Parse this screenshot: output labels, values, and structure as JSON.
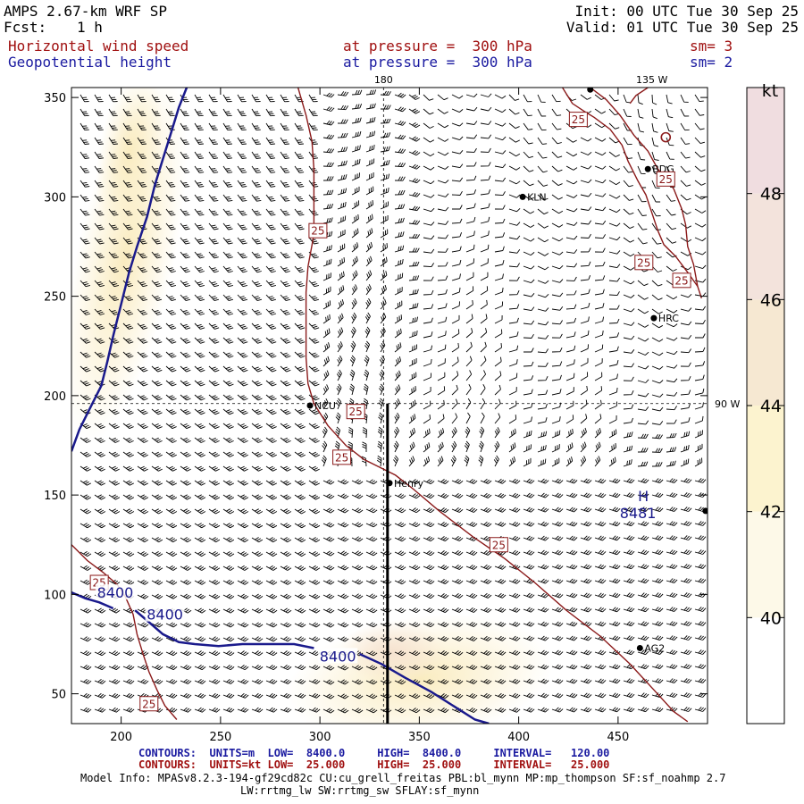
{
  "header": {
    "model": "AMPS 2.67-km WRF SP",
    "fcst_label": "Fcst:",
    "fcst_value": "1 h",
    "init": "Init: 00 UTC Tue 30 Sep 25",
    "valid": "Valid: 01 UTC Tue 30 Sep 25",
    "field1_name": "Horizontal wind speed",
    "field1_level": "at pressure =  300 hPa",
    "field1_sm": "sm= 3",
    "field2_name": "Geopotential height",
    "field2_level": "at pressure =  300 hPa",
    "field2_sm": "sm= 2"
  },
  "colors": {
    "fill_light": "#fdf5dc",
    "fill_mid": "#faedc2",
    "wind_contour": "#8b1a1a",
    "height_contour": "#1a1a8c"
  },
  "chart_data": {
    "type": "heatmap",
    "xlim": [
      175,
      495
    ],
    "ylim": [
      35,
      355
    ],
    "x_ticks": [
      200,
      250,
      300,
      350,
      400,
      450
    ],
    "y_ticks": [
      50,
      100,
      150,
      200,
      250,
      300,
      350
    ],
    "meridian_labels": [
      {
        "text": "180",
        "x": 332,
        "y": 355,
        "edge": "top"
      },
      {
        "text": "135 W",
        "x": 467,
        "y": 355,
        "edge": "top"
      },
      {
        "text": "90 W",
        "x": 495,
        "y": 196,
        "edge": "right"
      }
    ],
    "colorbar": {
      "unit": "kt",
      "min": 38,
      "max": 50,
      "tick_labels": [
        40,
        42,
        44,
        46,
        48
      ],
      "levels": [
        {
          "from": 38,
          "to": 40,
          "color": "#ffffff"
        },
        {
          "from": 40,
          "to": 42,
          "color": "#fdf9e8"
        },
        {
          "from": 42,
          "to": 44,
          "color": "#fcf3cf"
        },
        {
          "from": 44,
          "to": 46,
          "color": "#f6e8d2"
        },
        {
          "from": 46,
          "to": 48,
          "color": "#f3e3dc"
        },
        {
          "from": 48,
          "to": 50,
          "color": "#f0dde0"
        }
      ]
    },
    "stations": [
      {
        "name": "",
        "x": 436,
        "y": 354
      },
      {
        "name": "BDG",
        "x": 465,
        "y": 314
      },
      {
        "name": "KLN",
        "x": 402,
        "y": 300
      },
      {
        "name": "HRC",
        "x": 468,
        "y": 239
      },
      {
        "name": "NCU",
        "x": 295,
        "y": 195
      },
      {
        "name": "Henry",
        "x": 335,
        "y": 156
      },
      {
        "name": "",
        "x": 494,
        "y": 142
      },
      {
        "name": "AG2",
        "x": 461,
        "y": 73
      }
    ],
    "high_center": {
      "label": "H",
      "value": "8481",
      "x": 460,
      "y": 150
    },
    "wind_contour_labels": [
      {
        "text": "25",
        "x": 430,
        "y": 339
      },
      {
        "text": "25",
        "x": 299,
        "y": 283
      },
      {
        "text": "25",
        "x": 474,
        "y": 309
      },
      {
        "text": "25",
        "x": 463,
        "y": 267
      },
      {
        "text": "25",
        "x": 482,
        "y": 258
      },
      {
        "text": "25",
        "x": 311,
        "y": 169
      },
      {
        "text": "25",
        "x": 318,
        "y": 192
      },
      {
        "text": "25",
        "x": 390,
        "y": 125
      },
      {
        "text": "25",
        "x": 189,
        "y": 106
      },
      {
        "text": "25",
        "x": 214,
        "y": 45
      }
    ],
    "height_contour_labels": [
      {
        "text": "8400",
        "x": 197,
        "y": 101
      },
      {
        "text": "8400",
        "x": 222,
        "y": 90
      },
      {
        "text": "8400",
        "x": 309,
        "y": 69
      }
    ],
    "wind_contours": [
      [
        [
          436,
          355
        ],
        [
          444,
          349
        ],
        [
          451,
          341
        ],
        [
          458,
          331
        ],
        [
          465,
          323
        ],
        [
          470,
          314
        ],
        [
          478,
          304
        ],
        [
          482,
          294
        ],
        [
          484,
          286
        ],
        [
          485,
          275
        ],
        [
          488,
          266
        ],
        [
          490,
          255
        ],
        [
          492,
          249
        ]
      ],
      [
        [
          465,
          355
        ],
        [
          459,
          351
        ],
        [
          456,
          347
        ]
      ],
      [
        [
          422,
          355
        ],
        [
          427,
          347
        ],
        [
          433,
          343
        ],
        [
          438,
          340
        ],
        [
          446,
          334
        ],
        [
          452,
          326
        ],
        [
          455,
          318
        ],
        [
          460,
          308
        ],
        [
          464,
          301
        ],
        [
          467,
          292
        ],
        [
          470,
          283
        ],
        [
          473,
          276
        ],
        [
          479,
          270
        ],
        [
          485,
          262
        ],
        [
          490,
          255
        ]
      ],
      [
        [
          289,
          355
        ],
        [
          293,
          341
        ],
        [
          296,
          328
        ],
        [
          297,
          314
        ],
        [
          297,
          297
        ],
        [
          297,
          281
        ],
        [
          294,
          265
        ],
        [
          293,
          252
        ],
        [
          293,
          235
        ],
        [
          293,
          219
        ],
        [
          294,
          206
        ],
        [
          297,
          196
        ],
        [
          304,
          185
        ],
        [
          313,
          175
        ],
        [
          322,
          168
        ],
        [
          330,
          164
        ],
        [
          338,
          160
        ],
        [
          347,
          153
        ],
        [
          360,
          142
        ],
        [
          377,
          129
        ],
        [
          393,
          118
        ],
        [
          408,
          106
        ],
        [
          424,
          92
        ],
        [
          441,
          79
        ],
        [
          456,
          65
        ],
        [
          468,
          52
        ],
        [
          478,
          41
        ],
        [
          485,
          36
        ]
      ],
      [
        [
          175,
          125
        ],
        [
          183,
          117
        ],
        [
          191,
          111
        ],
        [
          198,
          105
        ],
        [
          202,
          99
        ],
        [
          206,
          90
        ],
        [
          208,
          80
        ],
        [
          211,
          70
        ],
        [
          214,
          61
        ],
        [
          218,
          52
        ],
        [
          222,
          44
        ],
        [
          228,
          37
        ]
      ]
    ],
    "height_contours": [
      [
        [
          175,
          101
        ],
        [
          182,
          98
        ],
        [
          189,
          96
        ],
        [
          196,
          93
        ]
      ],
      [
        [
          207,
          92
        ],
        [
          214,
          86
        ],
        [
          221,
          80
        ],
        [
          229,
          76
        ],
        [
          237,
          75
        ],
        [
          249,
          74
        ],
        [
          261,
          75
        ],
        [
          273,
          75
        ],
        [
          287,
          75
        ],
        [
          297,
          73
        ]
      ],
      [
        [
          320,
          70
        ],
        [
          331,
          65
        ],
        [
          343,
          58
        ],
        [
          356,
          51
        ],
        [
          367,
          44
        ],
        [
          378,
          37
        ],
        [
          385,
          35
        ]
      ],
      [
        [
          175,
          172
        ],
        [
          179,
          183
        ],
        [
          184,
          193
        ],
        [
          190,
          205
        ],
        [
          193,
          217
        ],
        [
          196,
          230
        ],
        [
          200,
          246
        ],
        [
          204,
          262
        ],
        [
          208,
          275
        ],
        [
          213,
          290
        ],
        [
          217,
          306
        ],
        [
          221,
          319
        ],
        [
          225,
          332
        ],
        [
          229,
          345
        ],
        [
          233,
          355
        ]
      ]
    ],
    "cross_section": [
      [
        334,
        196
      ],
      [
        334,
        35
      ]
    ],
    "ref_lines": {
      "vertical_x": 332,
      "horizontal_y": 196
    }
  },
  "footer": {
    "contours1": "CONTOURS:  UNITS=m  LOW=  8400.0     HIGH=  8400.0     INTERVAL=   120.00",
    "contours2": "CONTOURS:  UNITS=kt LOW=  25.000     HIGH=  25.000     INTERVAL=   25.000",
    "model_info": "Model Info: MPASv8.2.3-194-gf29cd82c CU:cu_grell_freitas PBL:bl_mynn MP:mp_thompson SF:sf_noahmp 2.7",
    "model_info2": "LW:rrtmg_lw SW:rrtmg_sw SFLAY:sf_mynn"
  }
}
